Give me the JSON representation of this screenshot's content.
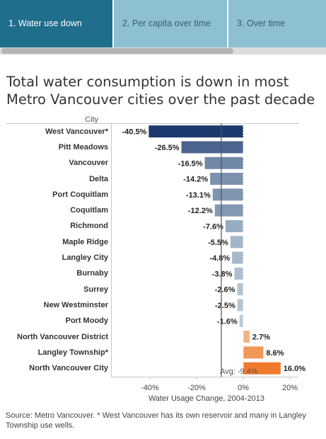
{
  "tabs": [
    {
      "label": "1. Water use down",
      "active": true
    },
    {
      "label": "2. Per capita over time",
      "active": false
    },
    {
      "label": "3. Over time",
      "active": false
    }
  ],
  "title": "Total water consumption is down in most Metro Vancouver cities over the past decade",
  "source": "Source: Metro Vancouver. * West Vancouver has its own reservoir and many in Langley Township use wells.",
  "chart_data": {
    "type": "bar",
    "orientation": "horizontal",
    "category_header": "City",
    "xlabel": "Water Usage Change, 2004-2013",
    "xlim": [
      -50,
      24
    ],
    "xticks": [
      -40,
      -20,
      0,
      20
    ],
    "xtick_labels": [
      "-40%",
      "-20%",
      "0%",
      "20%"
    ],
    "reference_line": {
      "value": -9.4,
      "label": "Avg: -9.4%"
    },
    "categories": [
      "West Vancouver*",
      "Pitt Meadows",
      "Vancouver",
      "Delta",
      "Port Coquitlam",
      "Coquitlam",
      "Richmond",
      "Maple Ridge",
      "Langley City",
      "Burnaby",
      "Surrey",
      "New Westminster",
      "Port Moody",
      "North Vancouver District",
      "Langley Township*",
      "North Vancouver City"
    ],
    "values": [
      -40.5,
      -26.5,
      -16.5,
      -14.2,
      -13.1,
      -12.2,
      -7.6,
      -5.5,
      -4.8,
      -3.8,
      -2.6,
      -2.5,
      -1.6,
      2.7,
      8.6,
      16.0
    ],
    "value_labels": [
      "-40.5%",
      "-26.5%",
      "-16.5%",
      "-14.2%",
      "-13.1%",
      "-12.2%",
      "-7.6%",
      "-5.5%",
      "-4.8%",
      "-3.8%",
      "-2.6%",
      "-2.5%",
      "-1.6%",
      "2.7%",
      "8.6%",
      "16.0%"
    ],
    "colors": {
      "negative_strong": "#1d3a6e",
      "negative_weak": "#c9d9e2",
      "positive_weak": "#f5c7a0",
      "positive_strong": "#ef7a2d",
      "avg_line": "#555555"
    },
    "grid": false
  }
}
